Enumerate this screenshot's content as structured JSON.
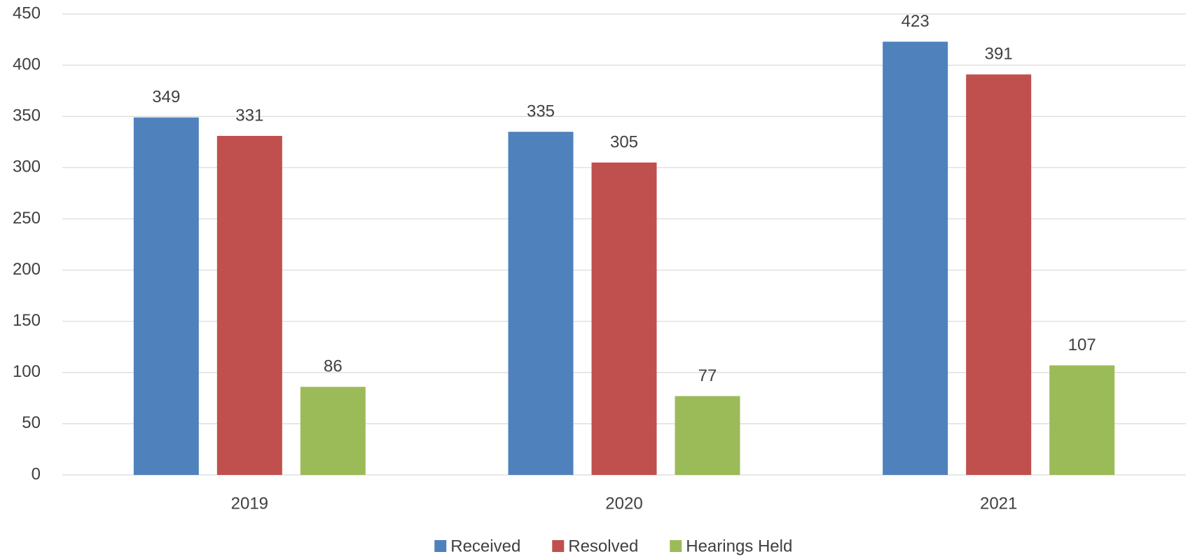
{
  "chart_data": {
    "type": "bar",
    "categories": [
      "2019",
      "2020",
      "2021"
    ],
    "series": [
      {
        "name": "Received",
        "color": "#4f81bd",
        "values": [
          349,
          335,
          423
        ]
      },
      {
        "name": "Resolved",
        "color": "#c0504d",
        "values": [
          331,
          305,
          391
        ]
      },
      {
        "name": "Hearings Held",
        "color": "#9bbb59",
        "values": [
          86,
          77,
          107
        ]
      }
    ],
    "ylim": [
      0,
      450
    ],
    "yticks": [
      0,
      50,
      100,
      150,
      200,
      250,
      300,
      350,
      400,
      450
    ],
    "grid": true,
    "data_labels": true,
    "legend": "bottom"
  }
}
